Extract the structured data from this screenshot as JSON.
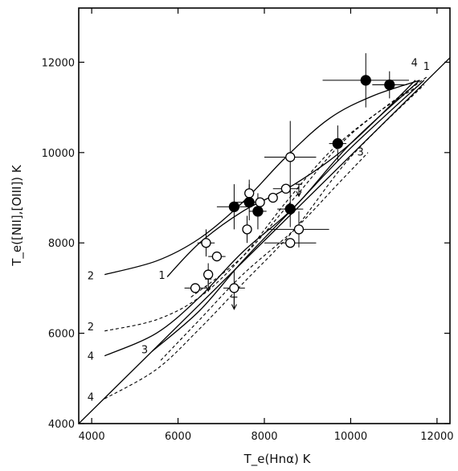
{
  "chart_data": {
    "type": "scatter",
    "xlabel": "T_e(Hnα) K",
    "ylabel": "T_e([NII],[OIII]) K",
    "xlim": [
      3700,
      12300
    ],
    "ylim": [
      4000,
      13200
    ],
    "xticks": [
      4000,
      6000,
      8000,
      10000,
      12000
    ],
    "yticks": [
      4000,
      6000,
      8000,
      10000,
      12000
    ],
    "grid": false,
    "series_open": {
      "marker": "open-circle",
      "points": [
        {
          "x": 6400,
          "y": 7000,
          "xerr": 250,
          "yerr": 0
        },
        {
          "x": 6650,
          "y": 8000,
          "xerr": 200,
          "yerr": 300
        },
        {
          "x": 6700,
          "y": 7300,
          "xerr": 0,
          "yerr": 250
        },
        {
          "x": 6900,
          "y": 7700,
          "xerr": 200,
          "yerr": 0
        },
        {
          "x": 7300,
          "y": 7000,
          "xerr": 250,
          "yerr": 400
        },
        {
          "x": 7600,
          "y": 8300,
          "xerr": 0,
          "yerr": 300
        },
        {
          "x": 7650,
          "y": 9100,
          "xerr": 0,
          "yerr": 300
        },
        {
          "x": 7900,
          "y": 8900,
          "xerr": 0,
          "yerr": 0
        },
        {
          "x": 8200,
          "y": 9000,
          "xerr": 0,
          "yerr": 0
        },
        {
          "x": 8500,
          "y": 9200,
          "xerr": 300,
          "yerr": 0
        },
        {
          "x": 8600,
          "y": 9900,
          "xerr": 600,
          "yerr": 800
        },
        {
          "x": 8600,
          "y": 8000,
          "xerr": 600,
          "yerr": 0
        },
        {
          "x": 8800,
          "y": 8300,
          "xerr": 700,
          "yerr": 400
        }
      ],
      "upper_limits": [
        {
          "x": 6700,
          "y": 7200
        },
        {
          "x": 7300,
          "y": 6800
        },
        {
          "x": 8800,
          "y": 9300
        }
      ]
    },
    "series_filled": {
      "marker": "filled-circle",
      "points": [
        {
          "x": 7300,
          "y": 8800,
          "xerr": 400,
          "yerr": 500
        },
        {
          "x": 7650,
          "y": 8900,
          "xerr": 300,
          "yerr": 400
        },
        {
          "x": 7850,
          "y": 8700,
          "xerr": 200,
          "yerr": 400
        },
        {
          "x": 8600,
          "y": 8750,
          "xerr": 300,
          "yerr": 400
        },
        {
          "x": 9700,
          "y": 10200,
          "xerr": 200,
          "yerr": 400
        },
        {
          "x": 10350,
          "y": 11600,
          "xerr": 1000,
          "yerr": 600
        },
        {
          "x": 10900,
          "y": 11500,
          "xerr": 400,
          "yerr": 300
        }
      ]
    },
    "curves": [
      {
        "label": "",
        "style": "solid",
        "points": [
          [
            3700,
            4000
          ],
          [
            12300,
            12100
          ]
        ]
      },
      {
        "label": "1",
        "style": "solid",
        "points": [
          [
            5750,
            7250
          ],
          [
            6500,
            8000
          ],
          [
            7500,
            8700
          ],
          [
            8700,
            9300
          ],
          [
            10000,
            10200
          ],
          [
            11500,
            11600
          ]
        ]
      },
      {
        "label": "1",
        "style": "dashed",
        "points": [
          [
            6300,
            6800
          ],
          [
            7500,
            7700
          ],
          [
            8700,
            9000
          ],
          [
            10000,
            10400
          ],
          [
            11800,
            11700
          ]
        ]
      },
      {
        "label": "2",
        "style": "solid",
        "points": [
          [
            4300,
            7300
          ],
          [
            5500,
            7600
          ],
          [
            6500,
            8100
          ],
          [
            7500,
            8900
          ],
          [
            8500,
            9900
          ],
          [
            9500,
            10750
          ],
          [
            10500,
            11250
          ],
          [
            11600,
            11600
          ]
        ]
      },
      {
        "label": "2",
        "style": "dashed",
        "points": [
          [
            4300,
            6050
          ],
          [
            5500,
            6300
          ],
          [
            6500,
            6800
          ],
          [
            7500,
            7700
          ],
          [
            8500,
            8900
          ],
          [
            9500,
            10000
          ],
          [
            10500,
            10800
          ],
          [
            11600,
            11500
          ]
        ]
      },
      {
        "label": "4",
        "style": "solid",
        "points": [
          [
            4300,
            5500
          ],
          [
            5500,
            6000
          ],
          [
            6500,
            6800
          ],
          [
            7500,
            7800
          ],
          [
            8700,
            8800
          ],
          [
            10000,
            10200
          ],
          [
            11600,
            11600
          ]
        ]
      },
      {
        "label": "4",
        "style": "dashed",
        "points": [
          [
            4300,
            4550
          ],
          [
            5500,
            5200
          ],
          [
            6500,
            6100
          ],
          [
            7500,
            7100
          ],
          [
            8700,
            8300
          ],
          [
            10000,
            9900
          ],
          [
            11700,
            11500
          ]
        ]
      },
      {
        "label": "3",
        "style": "solid",
        "points": [
          [
            5400,
            5600
          ],
          [
            6500,
            6500
          ],
          [
            7500,
            7600
          ],
          [
            8700,
            8800
          ],
          [
            10000,
            10100
          ],
          [
            11700,
            11600
          ]
        ]
      },
      {
        "label": "3",
        "style": "dashed",
        "points": [
          [
            5600,
            5400
          ],
          [
            6500,
            6300
          ],
          [
            7500,
            7300
          ],
          [
            8700,
            8300
          ],
          [
            9700,
            9300
          ],
          [
            10400,
            10000
          ]
        ]
      }
    ],
    "curve_labels": [
      {
        "text": "2",
        "x": 3900,
        "y": 7280
      },
      {
        "text": "2",
        "x": 3900,
        "y": 6150
      },
      {
        "text": "4",
        "x": 3900,
        "y": 5500
      },
      {
        "text": "4",
        "x": 3900,
        "y": 4600
      },
      {
        "text": "1",
        "x": 5550,
        "y": 7290
      },
      {
        "text": "3",
        "x": 5150,
        "y": 5650
      },
      {
        "text": "3",
        "x": 10150,
        "y": 10020
      },
      {
        "text": "4",
        "x": 11400,
        "y": 12000
      },
      {
        "text": "1",
        "x": 11680,
        "y": 11920
      }
    ]
  }
}
